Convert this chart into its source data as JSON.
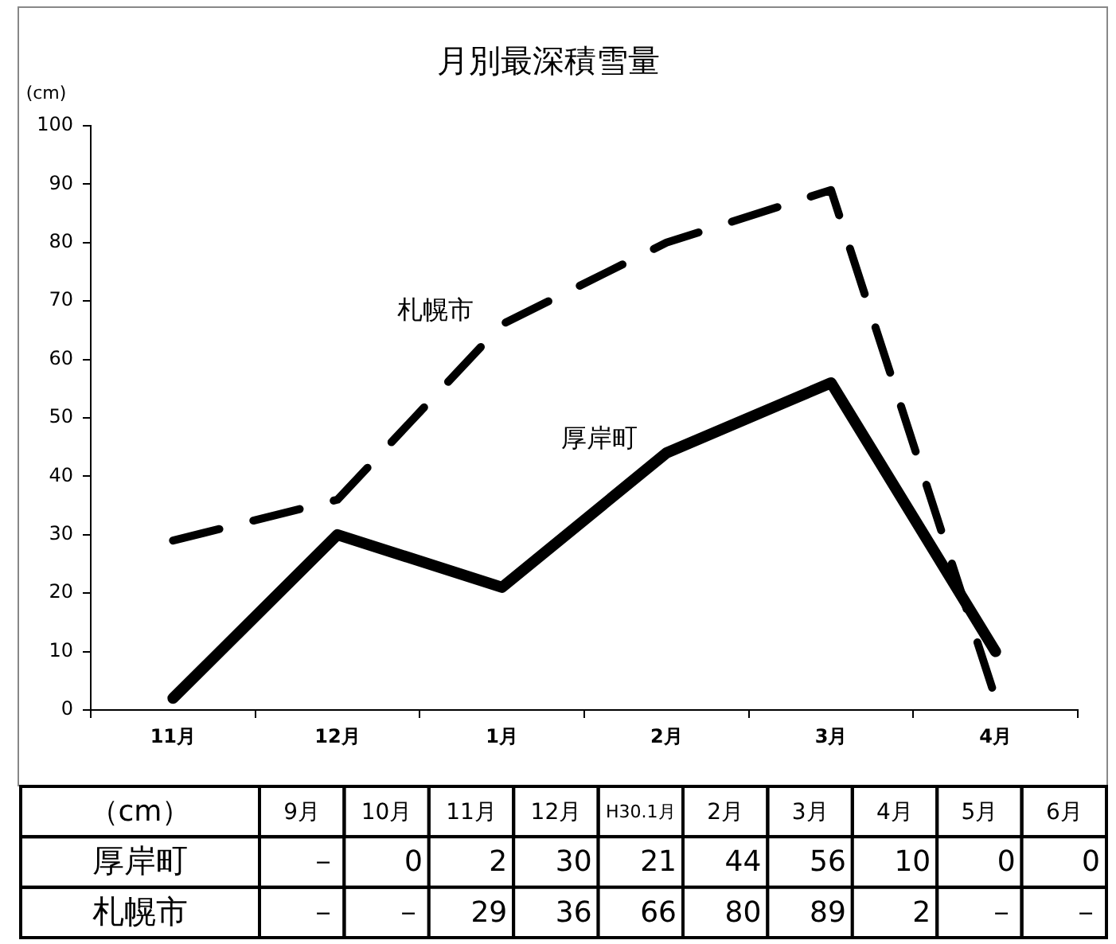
{
  "chart_data": [
    {
      "type": "line",
      "title": "月別最深積雪量",
      "ylabel": "(cm)",
      "categories": [
        "11月",
        "12月",
        "1月",
        "2月",
        "3月",
        "4月"
      ],
      "series": [
        {
          "name": "厚岸町",
          "color": "#000000",
          "line_style": "solid",
          "values": [
            2,
            30,
            21,
            44,
            56,
            10
          ]
        },
        {
          "name": "札幌市",
          "color": "#000000",
          "line_style": "dashed",
          "values": [
            29,
            36,
            66,
            80,
            89,
            2
          ]
        }
      ],
      "ylim": [
        0,
        100
      ],
      "yticks": [
        0,
        10,
        20,
        30,
        40,
        50,
        60,
        70,
        80,
        90,
        100
      ]
    },
    {
      "type": "heatmap",
      "annotations": [
        "（cm）"
      ],
      "categories": [
        "9月",
        "10月",
        "11月",
        "12月",
        "H30.1月",
        "2月",
        "3月",
        "4月",
        "5月",
        "6月"
      ],
      "y_categories": [
        "厚岸町",
        "札幌市"
      ],
      "cells": [
        [
          null,
          0,
          2,
          30,
          21,
          44,
          56,
          10,
          0,
          0
        ],
        [
          null,
          null,
          29,
          36,
          66,
          80,
          89,
          2,
          null,
          null
        ]
      ],
      "cell_labels": [
        [
          "－",
          "0",
          "2",
          "30",
          "21",
          "44",
          "56",
          "10",
          "0",
          "0"
        ],
        [
          "－",
          "－",
          "29",
          "36",
          "66",
          "80",
          "89",
          "2",
          "－",
          "－"
        ]
      ]
    }
  ]
}
